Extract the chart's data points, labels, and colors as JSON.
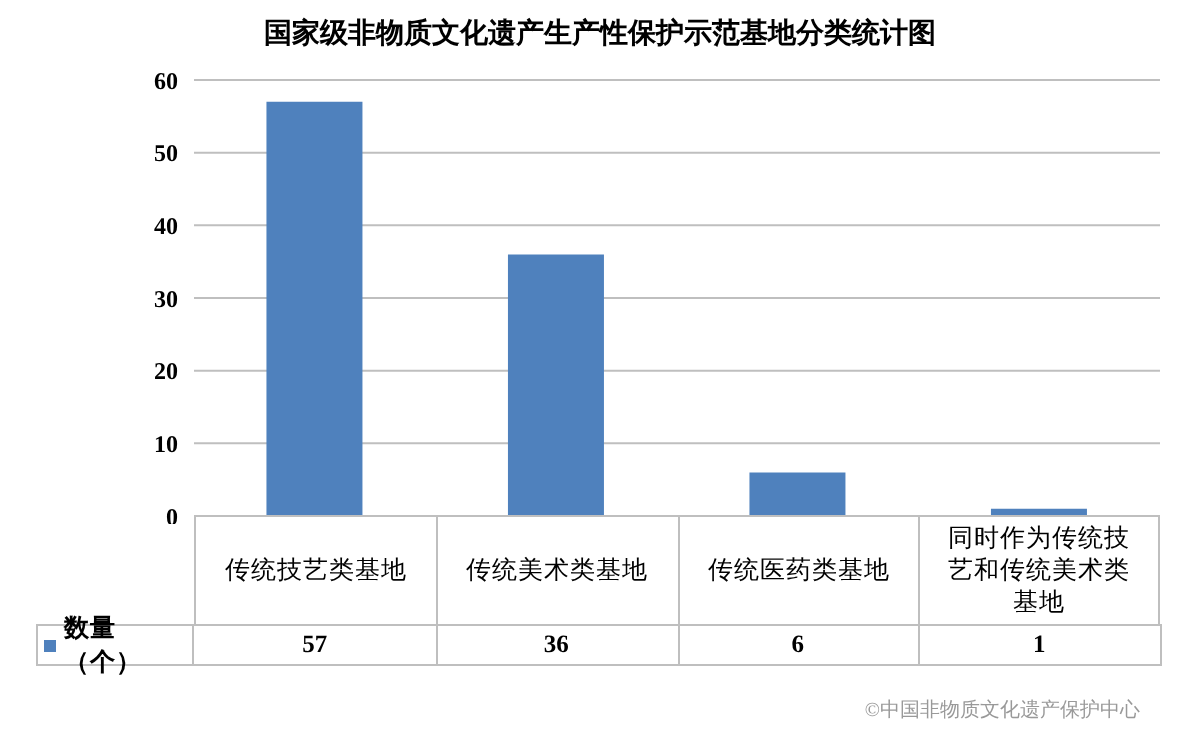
{
  "chart_data": {
    "type": "bar",
    "title": "国家级非物质文化遗产生产性保护示范基地分类统计图",
    "categories": [
      "传统技艺类基地",
      "传统美术类基地",
      "传统医药类基地",
      "同时作为传统技艺和传统美术类基地"
    ],
    "series": [
      {
        "name": "数量（个）",
        "color": "#4f81bd",
        "values": [
          57,
          36,
          6,
          1
        ]
      }
    ],
    "ylim": [
      0,
      60
    ],
    "yticks": [
      0,
      10,
      20,
      30,
      40,
      50,
      60
    ],
    "grid": "y",
    "data_labels": true,
    "legend": "bottom left",
    "annotations": [
      "©中国非物质文化遗产保护中心"
    ]
  }
}
